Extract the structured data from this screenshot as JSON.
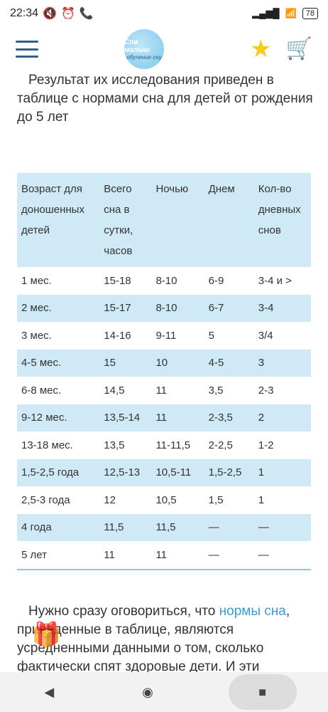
{
  "status": {
    "time": "22:34",
    "battery": "78"
  },
  "header": {
    "logo_text": "Спи малыш",
    "logo_sub": "обучение сну"
  },
  "intro": "Результат их исследования приведен в таблице с нормами сна для детей от рождения до 5 лет",
  "table": {
    "headers": [
      "Возраст для доношенных детей",
      "Всего сна в сутки, часов",
      "Ночью",
      "Днем",
      "Кол-во дневных снов"
    ],
    "rows": [
      [
        "1 мес.",
        "15-18",
        "8-10",
        "6-9",
        "3-4 и >"
      ],
      [
        "2 мес.",
        "15-17",
        "8-10",
        "6-7",
        "3-4"
      ],
      [
        "3 мес.",
        "14-16",
        "9-11",
        "5",
        "3/4"
      ],
      [
        "4-5 мес.",
        "15",
        "10",
        "4-5",
        "3"
      ],
      [
        "6-8 мес.",
        "14,5",
        "11",
        "3,5",
        "2-3"
      ],
      [
        "9-12 мес.",
        "13,5-14",
        "11",
        "2-3,5",
        "2"
      ],
      [
        "13-18 мес.",
        "13,5",
        "11-11,5",
        "2-2,5",
        "1-2"
      ],
      [
        "1,5-2,5 года",
        "12,5-13",
        "10,5-11",
        "1,5-2,5",
        "1"
      ],
      [
        "2,5-3 года",
        "12",
        "10,5",
        "1,5",
        "1"
      ],
      [
        "4 года",
        "11,5",
        "11,5",
        "—",
        "—"
      ],
      [
        "5 лет",
        "11",
        "11",
        "—",
        "—"
      ]
    ]
  },
  "outro": {
    "before": "Нужно сразу оговориться, что ",
    "link": "нормы сна",
    "after": ", приведенные в таблице, являются усредненными данными о том, сколько фактически спят здоровые дети. И эти"
  }
}
